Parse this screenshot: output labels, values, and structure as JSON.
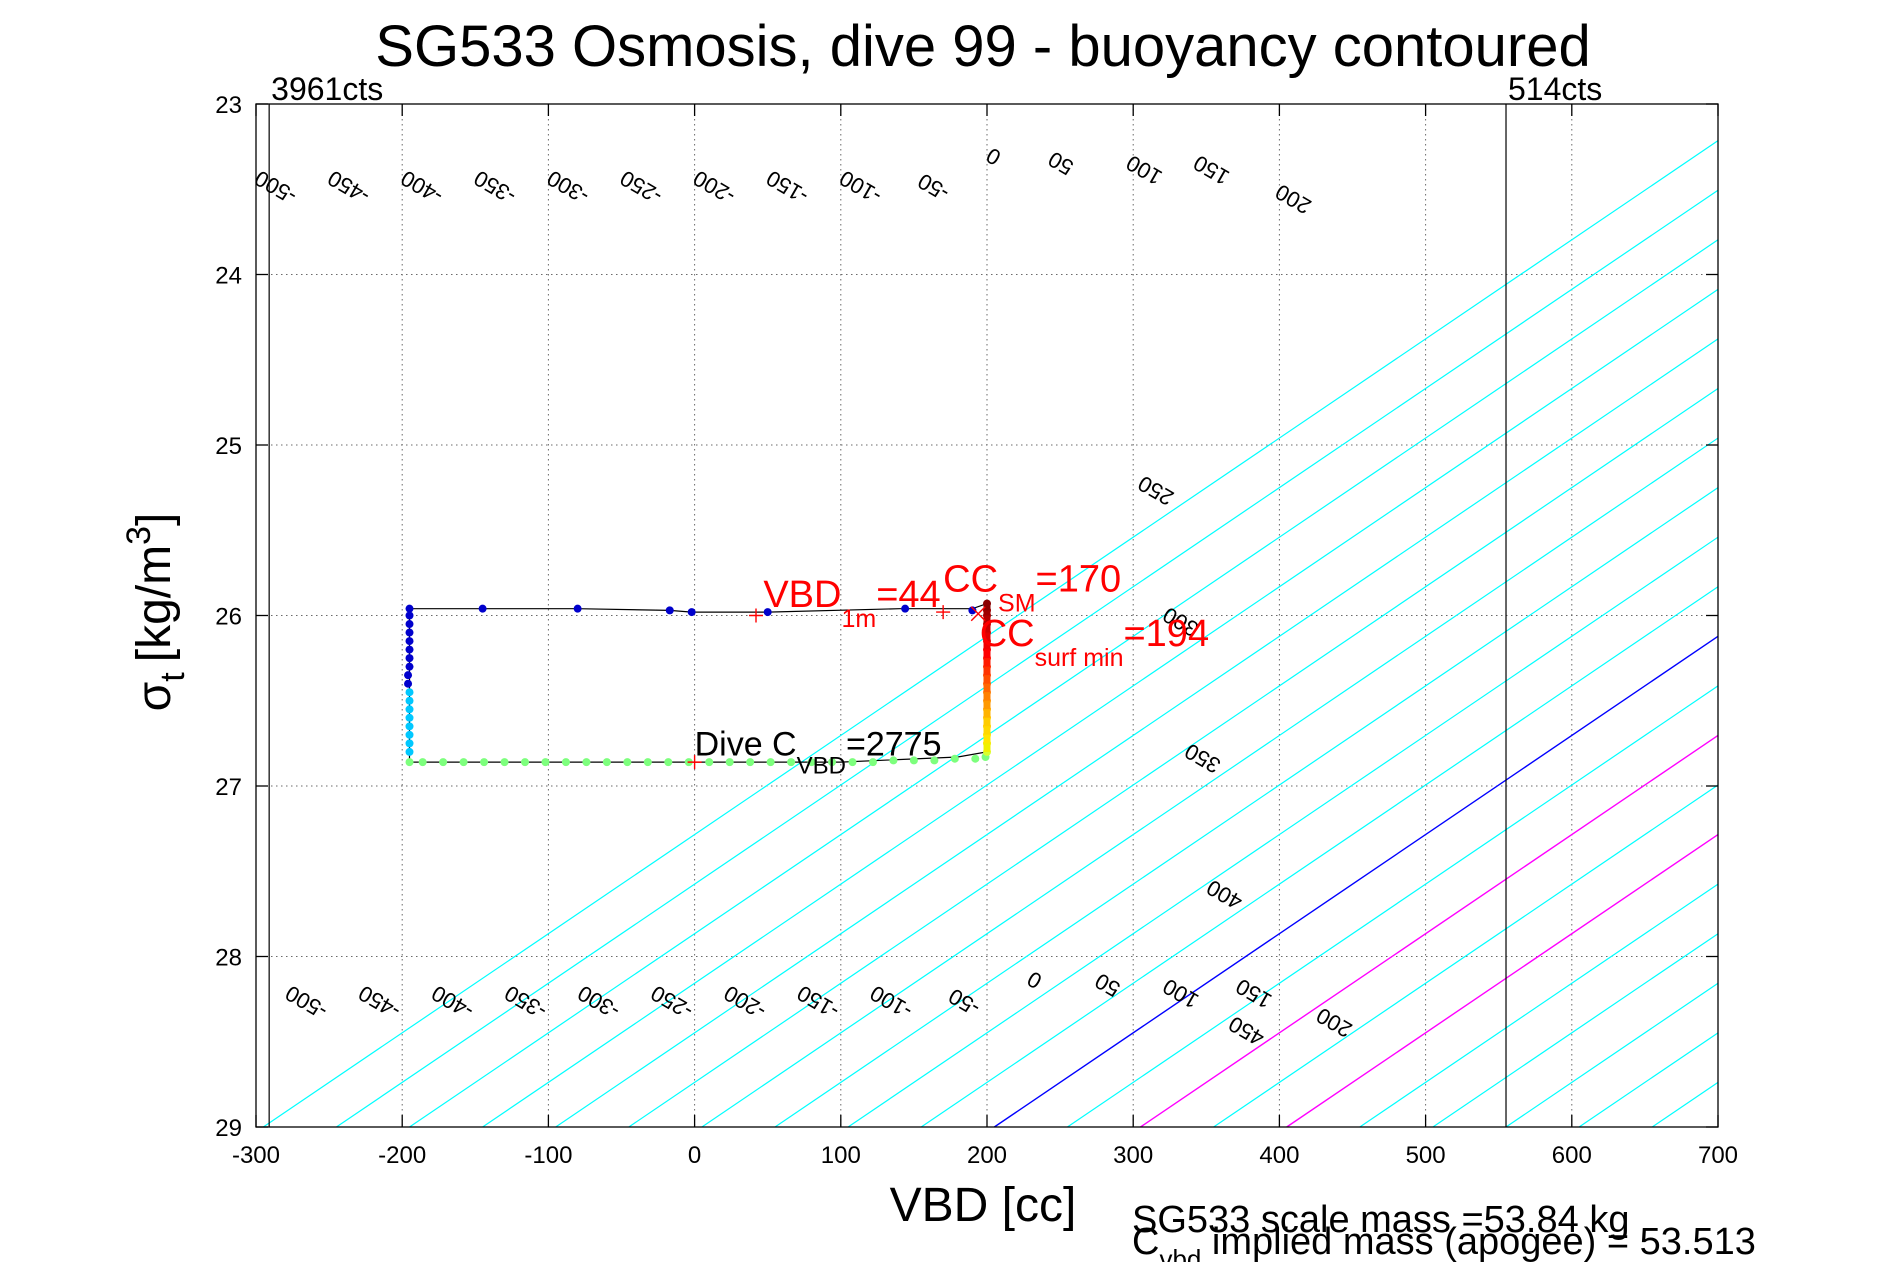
{
  "chart_data": {
    "type": "line",
    "title": "SG533 Osmosis, dive 99 - buoyancy contoured",
    "xlabel": "VBD [cc]",
    "ylabel_main": "σ",
    "ylabel_sub": "t",
    "ylabel_units": "[kg/m",
    "ylabel_sup": "3",
    "ylabel_close": "]",
    "xlim": [
      -300,
      700
    ],
    "ylim": [
      23,
      29
    ],
    "y_reversed": true,
    "grid": true,
    "x_ticks": [
      -300,
      -200,
      -100,
      0,
      100,
      200,
      300,
      400,
      500,
      600,
      700
    ],
    "y_ticks": [
      23,
      24,
      25,
      26,
      27,
      28,
      29
    ],
    "counts_left": {
      "x": -291,
      "label": "3961cts"
    },
    "counts_right": {
      "x": 555,
      "label": "514cts"
    },
    "contours": {
      "cyan_color": "#00ffff",
      "values": [
        -500,
        -450,
        -400,
        -350,
        -300,
        -250,
        -200,
        -150,
        -100,
        -50,
        0,
        50,
        100,
        150,
        200,
        250,
        300,
        350,
        400,
        450
      ],
      "zero_value": 0,
      "zero_color": "#0000ff",
      "magenta_values": [
        100,
        200
      ],
      "magenta_color": "#ff00ff",
      "x_at_sigma29_for_zero": 205,
      "x_shift_per_unit_sigma": 172,
      "spacing_per_50": 50,
      "label_color": "#000000",
      "top_labels": [
        {
          "v": -500,
          "x": -284,
          "y": 23.45
        },
        {
          "v": -450,
          "x": -234,
          "y": 23.45
        },
        {
          "v": -400,
          "x": -184,
          "y": 23.45
        },
        {
          "v": -350,
          "x": -134,
          "y": 23.45
        },
        {
          "v": -300,
          "x": -84,
          "y": 23.45
        },
        {
          "v": -250,
          "x": -34,
          "y": 23.45
        },
        {
          "v": -200,
          "x": 16,
          "y": 23.45
        },
        {
          "v": -150,
          "x": 66,
          "y": 23.45
        },
        {
          "v": -100,
          "x": 116,
          "y": 23.45
        },
        {
          "v": -50,
          "x": 166,
          "y": 23.45
        },
        {
          "v": 0,
          "x": 207,
          "y": 23.27
        },
        {
          "v": 50,
          "x": 253,
          "y": 23.31
        },
        {
          "v": 100,
          "x": 310,
          "y": 23.35
        },
        {
          "v": 150,
          "x": 356,
          "y": 23.35
        },
        {
          "v": 200,
          "x": 412,
          "y": 23.52
        },
        {
          "v": 250,
          "x": 318,
          "y": 25.23
        },
        {
          "v": 300,
          "x": 335,
          "y": 26.0
        },
        {
          "v": 350,
          "x": 350,
          "y": 26.8
        },
        {
          "v": 400,
          "x": 365,
          "y": 27.6
        },
        {
          "v": 450,
          "x": 380,
          "y": 28.4
        }
      ],
      "bottom_labels": [
        {
          "v": -500,
          "x": -263,
          "y": 28.23
        },
        {
          "v": -450,
          "x": -213,
          "y": 28.23
        },
        {
          "v": -400,
          "x": -163,
          "y": 28.23
        },
        {
          "v": -350,
          "x": -113,
          "y": 28.23
        },
        {
          "v": -300,
          "x": -63,
          "y": 28.23
        },
        {
          "v": -250,
          "x": -13,
          "y": 28.23
        },
        {
          "v": -200,
          "x": 37,
          "y": 28.23
        },
        {
          "v": -150,
          "x": 87,
          "y": 28.23
        },
        {
          "v": -100,
          "x": 137,
          "y": 28.23
        },
        {
          "v": -50,
          "x": 187,
          "y": 28.23
        },
        {
          "v": 0,
          "x": 235,
          "y": 28.1
        },
        {
          "v": 50,
          "x": 285,
          "y": 28.13
        },
        {
          "v": 100,
          "x": 335,
          "y": 28.18
        },
        {
          "v": 150,
          "x": 385,
          "y": 28.18
        },
        {
          "v": 200,
          "x": 440,
          "y": 28.35
        }
      ]
    },
    "series": [
      {
        "name": "dive track",
        "path": [
          [
            -195,
            25.96
          ],
          [
            -145,
            25.96
          ],
          [
            -80,
            25.96
          ],
          [
            -17,
            25.97
          ],
          [
            -2,
            25.98
          ],
          [
            50,
            25.98
          ],
          [
            140,
            25.96
          ],
          [
            190,
            25.96
          ],
          [
            200,
            25.93
          ],
          [
            200,
            26.55
          ],
          [
            200,
            26.8
          ],
          [
            180,
            26.83
          ],
          [
            100,
            26.86
          ],
          [
            0,
            26.86
          ],
          [
            -195,
            26.86
          ],
          [
            -195,
            26.5
          ],
          [
            -195,
            25.96
          ]
        ],
        "color": "#000000"
      },
      {
        "name": "apogee points",
        "points": [
          [
            -195,
            25.96
          ],
          [
            -195,
            26.0
          ],
          [
            -195,
            26.05
          ],
          [
            -195,
            26.1
          ],
          [
            -195,
            26.15
          ],
          [
            -195,
            26.2
          ],
          [
            -195,
            26.25
          ],
          [
            -195,
            26.3
          ],
          [
            -196,
            26.35
          ],
          [
            -196,
            26.4
          ],
          [
            -145,
            25.96
          ],
          [
            -80,
            25.96
          ],
          [
            -17,
            25.97
          ],
          [
            -2,
            25.98
          ],
          [
            50,
            25.98
          ],
          [
            144,
            25.96
          ],
          [
            190,
            25.97
          ]
        ],
        "color": "#0000cc"
      },
      {
        "name": "upper descent points",
        "points": [
          [
            -195,
            26.45
          ],
          [
            -195,
            26.5
          ],
          [
            -195,
            26.55
          ],
          [
            -195,
            26.6
          ],
          [
            -195,
            26.65
          ],
          [
            -195,
            26.7
          ],
          [
            -195,
            26.75
          ],
          [
            -195,
            26.8
          ]
        ],
        "color": "#00c8ff"
      },
      {
        "name": "deep points",
        "points": [
          [
            -195,
            26.86
          ],
          [
            -186,
            26.86
          ],
          [
            -172,
            26.86
          ],
          [
            -158,
            26.86
          ],
          [
            -144,
            26.86
          ],
          [
            -130,
            26.86
          ],
          [
            -116,
            26.86
          ],
          [
            -102,
            26.86
          ],
          [
            -88,
            26.86
          ],
          [
            -74,
            26.86
          ],
          [
            -60,
            26.86
          ],
          [
            -46,
            26.86
          ],
          [
            -32,
            26.86
          ],
          [
            -18,
            26.86
          ],
          [
            -4,
            26.86
          ],
          [
            10,
            26.86
          ],
          [
            24,
            26.86
          ],
          [
            38,
            26.86
          ],
          [
            52,
            26.86
          ],
          [
            66,
            26.86
          ],
          [
            80,
            26.86
          ],
          [
            94,
            26.86
          ],
          [
            108,
            26.86
          ],
          [
            122,
            26.86
          ],
          [
            136,
            26.85
          ],
          [
            150,
            26.85
          ],
          [
            164,
            26.85
          ],
          [
            178,
            26.84
          ],
          [
            192,
            26.84
          ],
          [
            199,
            26.83
          ]
        ],
        "color": "#7dff7d"
      },
      {
        "name": "ascent points",
        "points": [
          [
            200,
            25.93
          ],
          [
            200,
            25.97
          ],
          [
            200,
            26.0
          ],
          [
            200,
            26.05
          ],
          [
            200,
            26.1
          ],
          [
            200,
            26.15
          ],
          [
            200,
            26.2
          ],
          [
            200,
            26.25
          ],
          [
            200,
            26.3
          ],
          [
            200,
            26.35
          ],
          [
            200,
            26.4
          ],
          [
            200,
            26.45
          ],
          [
            200,
            26.5
          ],
          [
            200,
            26.55
          ],
          [
            200,
            26.6
          ],
          [
            200,
            26.65
          ],
          [
            200,
            26.7
          ],
          [
            200,
            26.75
          ],
          [
            200,
            26.8
          ]
        ],
        "colors": [
          "#8b0000",
          "#a00000",
          "#b40000",
          "#cc0000",
          "#e00000",
          "#f00000",
          "#ff0000",
          "#ff1a00",
          "#ff3300",
          "#ff4d00",
          "#ff6600",
          "#ff8000",
          "#ff9900",
          "#ffb300",
          "#ffcc00",
          "#ffd800",
          "#ffe600",
          "#f0f000",
          "#d8ff30"
        ]
      }
    ],
    "markers": [
      {
        "x": 42,
        "y": 26.0,
        "symbol": "+",
        "color": "#ff0000"
      },
      {
        "x": 170,
        "y": 25.98,
        "symbol": "+",
        "color": "#ff0000"
      },
      {
        "x": 194,
        "y": 25.99,
        "symbol": "x",
        "color": "#ff0000"
      },
      {
        "x": 0,
        "y": 26.86,
        "symbol": "+",
        "color": "#ff0000"
      }
    ],
    "annotations": [
      {
        "x": 47,
        "y": 25.95,
        "color": "#ff0000",
        "size": 38,
        "parts": [
          {
            "t": "VBD"
          },
          {
            "t": "1m",
            "dy": 20,
            "size": 25
          },
          {
            "t": "=44",
            "dy": -20
          }
        ]
      },
      {
        "x": 170,
        "y": 25.86,
        "color": "#ff0000",
        "size": 38,
        "parts": [
          {
            "t": "CC"
          },
          {
            "t": "SM",
            "dy": 20,
            "size": 25
          },
          {
            "t": "=170",
            "dy": -20
          }
        ]
      },
      {
        "x": 195,
        "y": 26.18,
        "color": "#ff0000",
        "size": 38,
        "parts": [
          {
            "t": "CC"
          },
          {
            "t": "surf min",
            "dy": 20,
            "size": 25
          },
          {
            "t": "=194",
            "dy": -20
          }
        ]
      },
      {
        "x": 0,
        "y": 26.82,
        "color": "#000000",
        "size": 34,
        "parts": [
          {
            "t": "Dive C"
          },
          {
            "t": "VBD",
            "dy": 18,
            "size": 24
          },
          {
            "t": "=2775",
            "dy": -18
          }
        ]
      }
    ],
    "footer": {
      "line1": "SG533 scale mass =53.84 kg",
      "line2_main": "C",
      "line2_sub": "vbd",
      "line2_rest": " implied mass (apogee) = 53.513"
    }
  }
}
